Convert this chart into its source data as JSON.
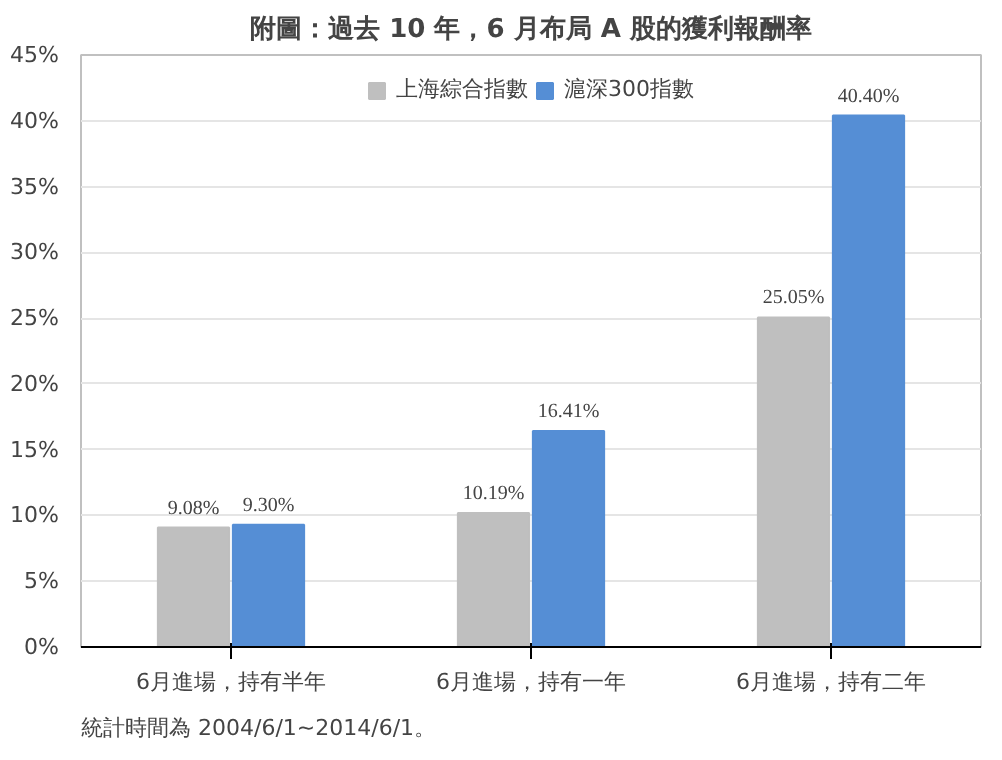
{
  "chart_data": {
    "type": "bar",
    "title": "附圖：過去 10 年，6 月布局 A 股的獲利報酬率",
    "categories": [
      "6月進場，持有半年",
      "6月進場，持有一年",
      "6月進場，持有二年"
    ],
    "series": [
      {
        "name": "上海綜合指數",
        "color": "#bfbfbf",
        "values": [
          9.08,
          10.19,
          25.05
        ],
        "value_labels": [
          "9.08%",
          "10.19%",
          "25.05%"
        ]
      },
      {
        "name": "滬深300指數",
        "color": "#558ed5",
        "values": [
          9.3,
          16.41,
          40.4
        ],
        "value_labels": [
          "9.30%",
          "16.41%",
          "40.40%"
        ]
      }
    ],
    "ylim": [
      0,
      45
    ],
    "yticks": [
      {
        "value": 0,
        "label": "0%"
      },
      {
        "value": 5,
        "label": "5%"
      },
      {
        "value": 10,
        "label": "10%"
      },
      {
        "value": 15,
        "label": "15%"
      },
      {
        "value": 20,
        "label": "20%"
      },
      {
        "value": 25,
        "label": "25%"
      },
      {
        "value": 30,
        "label": "30%"
      },
      {
        "value": 35,
        "label": "35%"
      },
      {
        "value": 40,
        "label": "40%"
      },
      {
        "value": 45,
        "label": "45%"
      }
    ],
    "grid": "y",
    "legend": "top",
    "annotations": [
      "統計時間為 2004/6/1~2014/6/1。"
    ]
  }
}
